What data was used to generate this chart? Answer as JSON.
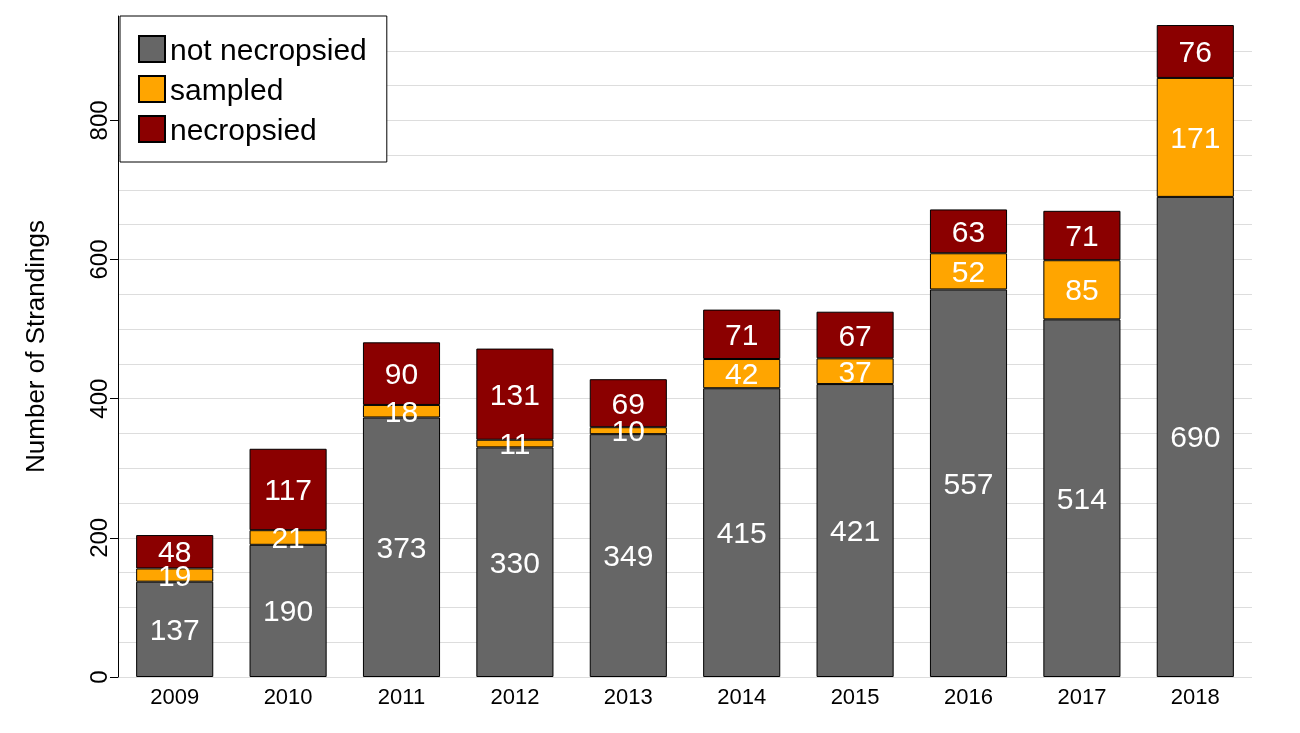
{
  "chart_data": {
    "type": "bar",
    "stacked": true,
    "ylabel": "Number of Strandings",
    "categories": [
      "2009",
      "2010",
      "2011",
      "2012",
      "2013",
      "2014",
      "2015",
      "2016",
      "2017",
      "2018"
    ],
    "series": [
      {
        "name": "not necropsied",
        "color": "#666666",
        "values": [
          137,
          190,
          373,
          330,
          349,
          415,
          421,
          557,
          514,
          690
        ]
      },
      {
        "name": "sampled",
        "color": "#ffa500",
        "values": [
          19,
          21,
          18,
          11,
          10,
          42,
          37,
          52,
          85,
          171
        ]
      },
      {
        "name": "necropsied",
        "color": "#8b0000",
        "values": [
          48,
          117,
          90,
          131,
          69,
          71,
          67,
          63,
          71,
          76
        ]
      }
    ],
    "ylim": [
      0,
      950
    ],
    "yticks": [
      0,
      {
        "value": 50,
        "label": null
      },
      {
        "value": 100,
        "label": null
      },
      {
        "value": 150,
        "label": null
      },
      200,
      {
        "value": 250,
        "label": null
      },
      {
        "value": 300,
        "label": null
      },
      {
        "value": 350,
        "label": null
      },
      400,
      {
        "value": 450,
        "label": null
      },
      {
        "value": 500,
        "label": null
      },
      {
        "value": 550,
        "label": null
      },
      600,
      {
        "value": 650,
        "label": null
      },
      {
        "value": 700,
        "label": null
      },
      {
        "value": 750,
        "label": null
      },
      800,
      {
        "value": 850,
        "label": null
      },
      {
        "value": 900,
        "label": null
      }
    ],
    "grid": "y",
    "legend": "top left",
    "data_labels": true
  }
}
